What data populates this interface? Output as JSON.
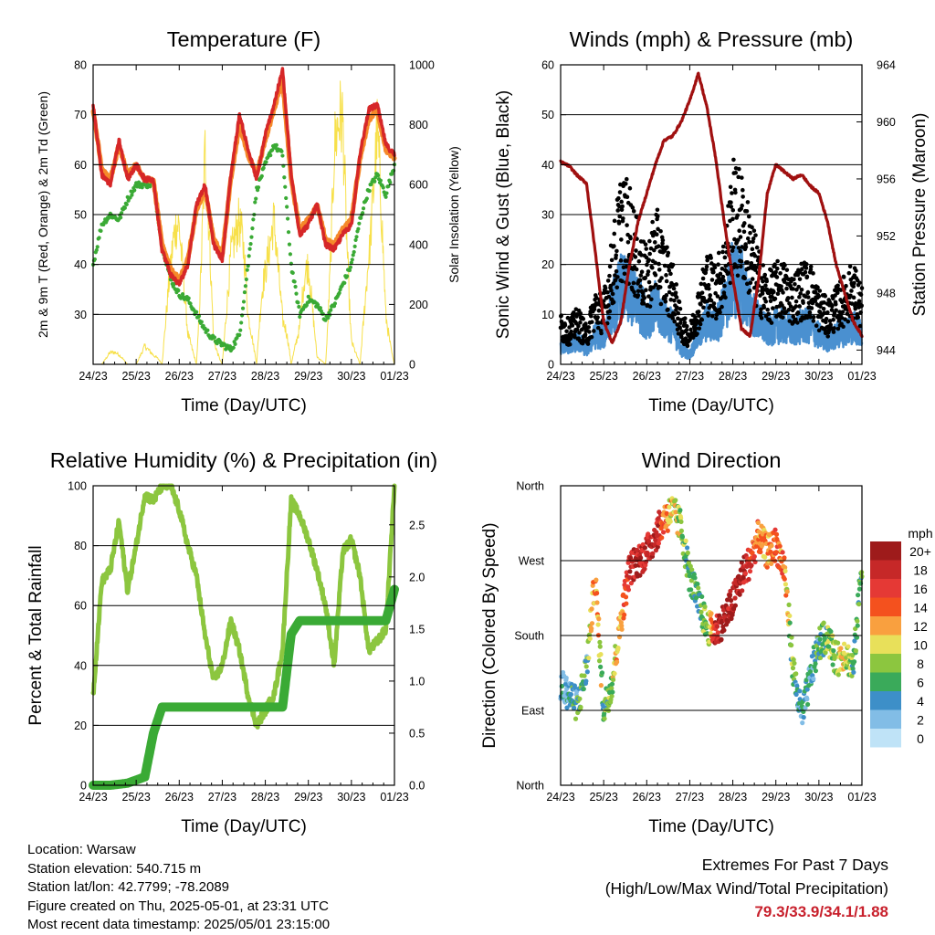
{
  "x_tick_labels": [
    "24/23",
    "25/23",
    "26/23",
    "27/23",
    "28/23",
    "29/23",
    "30/23",
    "01/23"
  ],
  "colors": {
    "temp_2m": "#d62728",
    "temp_9m": "#f5892a",
    "dewpoint": "#3aaa35",
    "solar": "#f7e04a",
    "gust": "#000000",
    "wind": "#4a90d0",
    "pressure": "#a01010",
    "rh": "#8cc63f",
    "precip": "#3aaa35",
    "gridline": "#000000"
  },
  "chart_data": [
    {
      "id": "temperature",
      "type": "line",
      "title": "Temperature (F)",
      "xlabel": "Time (Day/UTC)",
      "ylabel": "2m & 9m T (Red, Orange) & 2m Td (Green)",
      "y2label": "Solar Insolation (Yellow)",
      "ylim": [
        20,
        80
      ],
      "y2lim": [
        0,
        1000
      ],
      "yticks": [
        30,
        40,
        50,
        60,
        70,
        80
      ],
      "y2ticks": [
        0,
        200,
        400,
        600,
        800,
        1000
      ],
      "gridlines": [
        30,
        40,
        50,
        60,
        70,
        80
      ],
      "x": [
        0,
        0.2,
        0.4,
        0.6,
        0.8,
        1.0,
        1.2,
        1.4,
        1.6,
        1.8,
        2.0,
        2.2,
        2.4,
        2.6,
        2.8,
        3.0,
        3.2,
        3.4,
        3.6,
        3.8,
        4.0,
        4.2,
        4.4,
        4.6,
        4.8,
        5.0,
        5.2,
        5.4,
        5.6,
        5.8,
        6.0,
        6.2,
        6.4,
        6.6,
        6.8,
        7.0
      ],
      "series": [
        {
          "name": "2m T",
          "axis": "y",
          "values": [
            72,
            58,
            56,
            65,
            57,
            60,
            57,
            57,
            43,
            38,
            36,
            40,
            52,
            56,
            44,
            41,
            58,
            70,
            63,
            57,
            66,
            72,
            79,
            58,
            46,
            48,
            52,
            44,
            43,
            46,
            48,
            62,
            71,
            72,
            64,
            62
          ]
        },
        {
          "name": "9m T",
          "axis": "y",
          "values": [
            71,
            59,
            57,
            64,
            58,
            60,
            57,
            57,
            44,
            39,
            37,
            41,
            51,
            55,
            45,
            42,
            57,
            68,
            62,
            58,
            65,
            71,
            77,
            57,
            47,
            49,
            52,
            45,
            44,
            47,
            49,
            61,
            69,
            71,
            63,
            61
          ]
        },
        {
          "name": "2m Td",
          "axis": "y",
          "values": [
            40,
            48,
            50,
            49,
            53,
            56,
            56,
            56,
            44,
            37,
            34,
            33,
            30,
            27,
            25,
            24,
            23,
            26,
            40,
            55,
            60,
            64,
            62,
            40,
            30,
            33,
            32,
            29,
            32,
            36,
            40,
            49,
            55,
            58,
            54,
            60
          ]
        },
        {
          "name": "Solar",
          "axis": "y2",
          "values": [
            0,
            0,
            80,
            40,
            0,
            0,
            120,
            60,
            0,
            400,
            900,
            200,
            0,
            900,
            100,
            0,
            720,
            950,
            200,
            0,
            600,
            950,
            300,
            0,
            150,
            650,
            50,
            0,
            900,
            1000,
            150,
            0,
            700,
            980,
            200,
            0
          ]
        }
      ]
    },
    {
      "id": "winds",
      "type": "scatter",
      "title": "Winds (mph) & Pressure (mb)",
      "xlabel": "Time (Day/UTC)",
      "ylabel": "Sonic Wind & Gust (Blue, Black)",
      "y2label": "Station Pressure (Maroon)",
      "ylim": [
        0,
        60
      ],
      "y2lim": [
        943,
        964
      ],
      "yticks": [
        0,
        10,
        20,
        30,
        40,
        50,
        60
      ],
      "y2ticks": [
        944,
        948,
        952,
        956,
        960,
        964
      ],
      "gridlines": [
        10,
        20,
        30,
        40,
        50,
        60
      ],
      "x": [
        0,
        0.2,
        0.4,
        0.6,
        0.8,
        1.0,
        1.2,
        1.4,
        1.6,
        1.8,
        2.0,
        2.2,
        2.4,
        2.6,
        2.8,
        3.0,
        3.2,
        3.4,
        3.6,
        3.8,
        4.0,
        4.2,
        4.4,
        4.6,
        4.8,
        5.0,
        5.2,
        5.4,
        5.6,
        5.8,
        6.0,
        6.2,
        6.4,
        6.6,
        6.8,
        7.0
      ],
      "series": [
        {
          "name": "Gust",
          "axis": "y",
          "values": [
            8,
            7,
            9,
            6,
            12,
            11,
            20,
            30,
            28,
            22,
            18,
            25,
            20,
            16,
            8,
            6,
            12,
            18,
            16,
            20,
            32,
            30,
            24,
            18,
            14,
            16,
            16,
            14,
            16,
            16,
            12,
            10,
            12,
            14,
            16,
            12
          ]
        },
        {
          "name": "Wind",
          "axis": "y",
          "values": [
            4,
            4,
            5,
            3,
            6,
            6,
            12,
            16,
            15,
            13,
            10,
            12,
            10,
            8,
            3,
            2,
            6,
            9,
            8,
            12,
            18,
            17,
            12,
            9,
            7,
            8,
            8,
            7,
            8,
            8,
            6,
            5,
            6,
            7,
            8,
            6
          ]
        },
        {
          "name": "Pressure",
          "axis": "y2",
          "values": [
            957.2,
            956.9,
            956.2,
            955.7,
            951.0,
            946.0,
            944.5,
            946.0,
            950.0,
            953.0,
            955.0,
            957.0,
            958.7,
            959.0,
            960.0,
            961.5,
            963.4,
            961.0,
            957.5,
            953.0,
            949.0,
            945.5,
            945.0,
            949.0,
            955.0,
            957.0,
            956.5,
            956.0,
            956.3,
            955.5,
            955.0,
            953.0,
            950.0,
            948.0,
            946.0,
            945.0
          ]
        }
      ]
    },
    {
      "id": "humidity",
      "type": "line",
      "title": "Relative Humidity (%) & Precipitation (in)",
      "xlabel": "Time (Day/UTC)",
      "ylabel": "Percent & Total Rainfall",
      "ylim": [
        0,
        100
      ],
      "y2lim": [
        0,
        2.875
      ],
      "yticks": [
        0,
        20,
        40,
        60,
        80,
        100
      ],
      "y2ticks": [
        0.0,
        0.5,
        1.0,
        1.5,
        2.0,
        2.5
      ],
      "gridlines": [
        20,
        40,
        60,
        80,
        100
      ],
      "x": [
        0,
        0.2,
        0.4,
        0.6,
        0.8,
        1.0,
        1.2,
        1.4,
        1.6,
        1.8,
        2.0,
        2.2,
        2.4,
        2.6,
        2.8,
        3.0,
        3.2,
        3.4,
        3.6,
        3.8,
        4.0,
        4.2,
        4.4,
        4.6,
        4.8,
        5.0,
        5.2,
        5.4,
        5.6,
        5.8,
        6.0,
        6.2,
        6.4,
        6.6,
        6.8,
        7.0
      ],
      "series": [
        {
          "name": "RH",
          "axis": "y",
          "values": [
            30,
            68,
            72,
            88,
            65,
            80,
            97,
            95,
            100,
            100,
            92,
            80,
            70,
            50,
            35,
            40,
            55,
            45,
            30,
            20,
            25,
            30,
            45,
            95,
            90,
            82,
            72,
            60,
            40,
            78,
            82,
            70,
            45,
            48,
            52,
            100
          ]
        },
        {
          "name": "Precip",
          "axis": "y2",
          "values": [
            0,
            0,
            0,
            0.01,
            0.02,
            0.05,
            0.08,
            0.5,
            0.75,
            0.75,
            0.75,
            0.75,
            0.75,
            0.75,
            0.75,
            0.75,
            0.75,
            0.75,
            0.75,
            0.75,
            0.75,
            0.75,
            0.75,
            1.45,
            1.58,
            1.58,
            1.58,
            1.58,
            1.58,
            1.58,
            1.58,
            1.58,
            1.58,
            1.58,
            1.58,
            1.88
          ]
        }
      ]
    },
    {
      "id": "direction",
      "type": "scatter",
      "title": "Wind Direction",
      "xlabel": "Time (Day/UTC)",
      "ylabel": "Direction (Colored By Speed)",
      "y_categories": [
        "North",
        "East",
        "South",
        "West",
        "North"
      ],
      "ylim": [
        0,
        360
      ],
      "gridlines": [
        90,
        180,
        270
      ],
      "x": [
        0,
        0.2,
        0.4,
        0.6,
        0.8,
        1.0,
        1.2,
        1.4,
        1.6,
        1.8,
        2.0,
        2.2,
        2.4,
        2.6,
        2.8,
        3.0,
        3.2,
        3.4,
        3.6,
        3.8,
        4.0,
        4.2,
        4.4,
        4.6,
        4.8,
        5.0,
        5.2,
        5.4,
        5.6,
        5.8,
        6.0,
        6.2,
        6.4,
        6.6,
        6.8,
        7.0
      ],
      "direction": [
        120,
        110,
        95,
        140,
        250,
        90,
        125,
        200,
        260,
        270,
        280,
        300,
        320,
        330,
        310,
        250,
        220,
        190,
        185,
        200,
        220,
        250,
        270,
        300,
        280,
        290,
        260,
        140,
        80,
        130,
        170,
        180,
        150,
        160,
        140,
        270
      ],
      "speed": [
        4,
        4,
        6,
        5,
        14,
        6,
        9,
        12,
        18,
        18,
        18,
        20,
        14,
        10,
        8,
        6,
        6,
        8,
        18,
        20,
        19,
        20,
        16,
        12,
        12,
        14,
        12,
        6,
        4,
        4,
        6,
        8,
        8,
        10,
        6,
        6
      ],
      "legend": {
        "title": "mph",
        "labels": [
          "20+",
          "18",
          "16",
          "14",
          "12",
          "10",
          "8",
          "6",
          "4",
          "2",
          "0"
        ],
        "colors": [
          "#9e1b1b",
          "#c62828",
          "#e53935",
          "#f4511e",
          "#f9a03f",
          "#e8e05a",
          "#8cc63f",
          "#3aaa5a",
          "#3d8fc8",
          "#82bde6",
          "#bfe3f7"
        ]
      }
    }
  ],
  "info": {
    "location": "Location: Warsaw",
    "elevation": "Station elevation: 540.715 m",
    "latlon": "Station lat/lon: 42.7799; -78.2089",
    "created": "Figure created on Thu, 2025-05-01, at 23:31 UTC",
    "recent": "Most recent data timestamp: 2025/05/01 23:15:00"
  },
  "extremes": {
    "title": "Extremes For Past 7 Days",
    "subtitle": "(High/Low/Max Wind/Total Precipitation)",
    "values": "79.3/33.9/34.1/1.88"
  }
}
